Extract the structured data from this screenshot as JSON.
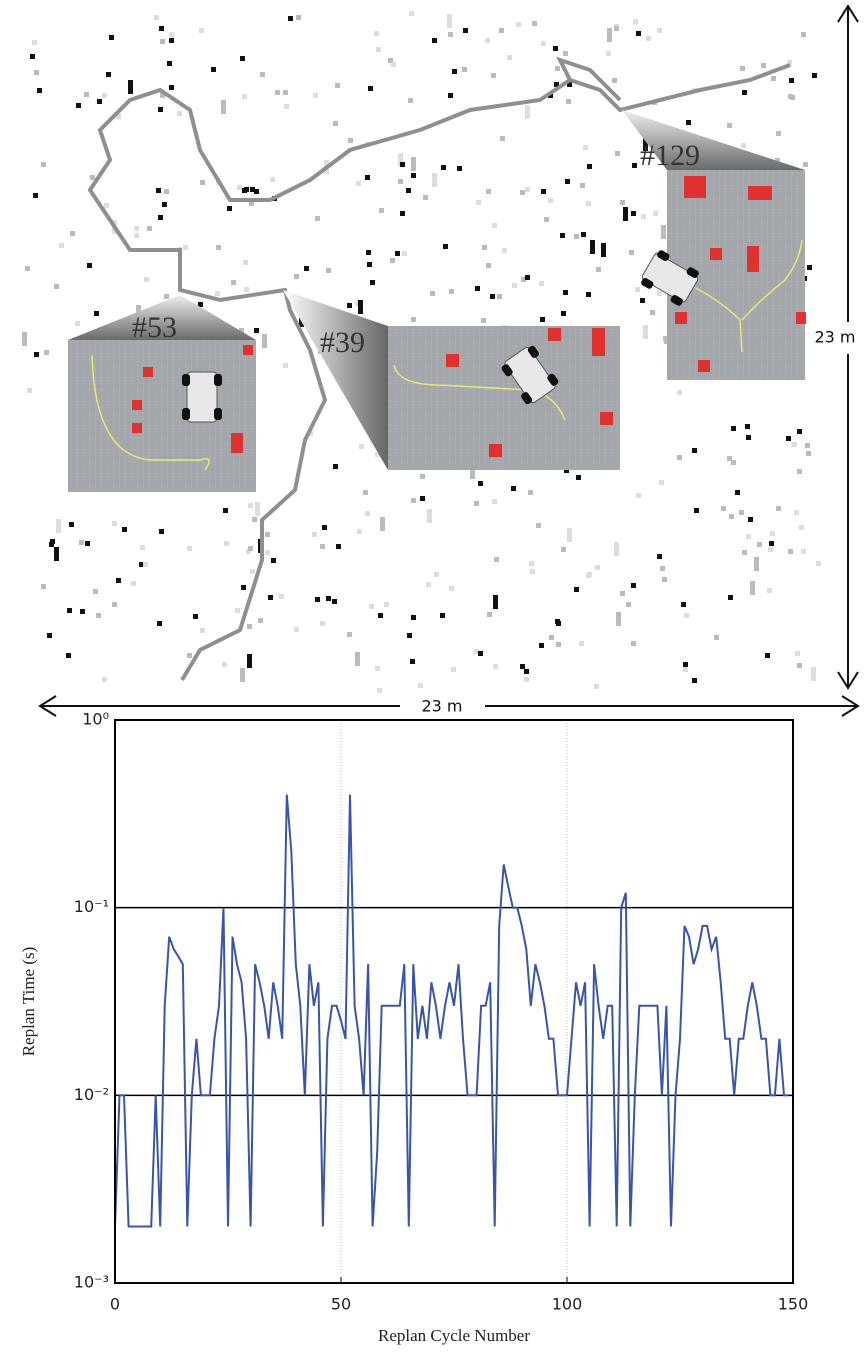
{
  "map": {
    "labels": [
      "#53",
      "#39",
      "#129"
    ],
    "width_label": "23 m",
    "height_label": "23 m"
  },
  "chart_data": {
    "type": "line",
    "xlabel": "Replan Cycle Number",
    "ylabel": "Replan Time (s)",
    "color": "#3a55a8",
    "log_y": true,
    "grid": true,
    "xlim": [
      0,
      150
    ],
    "xticks": [
      0,
      50,
      100,
      150
    ],
    "ylim": [
      0.001,
      1
    ],
    "yticks": [
      {
        "value": 0.001,
        "label": "10⁻³"
      },
      {
        "value": 0.01,
        "label": "10⁻²"
      },
      {
        "value": 0.1,
        "label": "10⁻¹"
      },
      {
        "value": 1,
        "label": "10⁰"
      }
    ],
    "x": [
      0,
      1,
      2,
      3,
      4,
      5,
      6,
      7,
      8,
      9,
      10,
      11,
      12,
      13,
      14,
      15,
      16,
      17,
      18,
      19,
      20,
      21,
      22,
      23,
      24,
      25,
      26,
      27,
      28,
      29,
      30,
      31,
      32,
      33,
      34,
      35,
      36,
      37,
      38,
      39,
      40,
      41,
      42,
      43,
      44,
      45,
      46,
      47,
      48,
      49,
      50,
      51,
      52,
      53,
      54,
      55,
      56,
      57,
      58,
      59,
      60,
      61,
      62,
      63,
      64,
      65,
      66,
      67,
      68,
      69,
      70,
      71,
      72,
      73,
      74,
      75,
      76,
      77,
      78,
      79,
      80,
      81,
      82,
      83,
      84,
      85,
      86,
      87,
      88,
      89,
      90,
      91,
      92,
      93,
      94,
      95,
      96,
      97,
      98,
      99,
      100,
      101,
      102,
      103,
      104,
      105,
      106,
      107,
      108,
      109,
      110,
      111,
      112,
      113,
      114,
      115,
      116,
      117,
      118,
      119,
      120,
      121,
      122,
      123,
      124,
      125,
      126,
      127,
      128,
      129,
      130,
      131,
      132,
      133,
      134,
      135,
      136,
      137,
      138,
      139,
      140,
      141,
      142,
      143,
      144,
      145,
      146,
      147,
      148,
      149
    ],
    "values": [
      0.002,
      0.01,
      0.01,
      0.002,
      0.002,
      0.002,
      0.002,
      0.002,
      0.002,
      0.01,
      0.002,
      0.03,
      0.07,
      0.06,
      0.055,
      0.05,
      0.002,
      0.01,
      0.02,
      0.01,
      0.01,
      0.01,
      0.02,
      0.03,
      0.1,
      0.002,
      0.07,
      0.05,
      0.04,
      0.02,
      0.002,
      0.05,
      0.04,
      0.03,
      0.02,
      0.04,
      0.03,
      0.02,
      0.4,
      0.2,
      0.05,
      0.03,
      0.01,
      0.05,
      0.03,
      0.04,
      0.002,
      0.02,
      0.03,
      0.03,
      0.025,
      0.02,
      0.4,
      0.03,
      0.02,
      0.01,
      0.05,
      0.002,
      0.005,
      0.03,
      0.03,
      0.03,
      0.03,
      0.03,
      0.05,
      0.002,
      0.05,
      0.02,
      0.03,
      0.02,
      0.04,
      0.03,
      0.02,
      0.03,
      0.04,
      0.03,
      0.05,
      0.02,
      0.01,
      0.01,
      0.01,
      0.03,
      0.03,
      0.04,
      0.002,
      0.08,
      0.17,
      0.13,
      0.1,
      0.1,
      0.08,
      0.06,
      0.03,
      0.05,
      0.04,
      0.03,
      0.02,
      0.02,
      0.01,
      0.01,
      0.01,
      0.02,
      0.04,
      0.03,
      0.04,
      0.002,
      0.05,
      0.03,
      0.02,
      0.03,
      0.03,
      0.002,
      0.1,
      0.12,
      0.002,
      0.01,
      0.03,
      0.03,
      0.03,
      0.03,
      0.03,
      0.01,
      0.03,
      0.002,
      0.01,
      0.02,
      0.08,
      0.07,
      0.05,
      0.06,
      0.08,
      0.08,
      0.06,
      0.07,
      0.04,
      0.02,
      0.02,
      0.01,
      0.02,
      0.02,
      0.03,
      0.04,
      0.03,
      0.02,
      0.02,
      0.01,
      0.01,
      0.02,
      0.01,
      0.01
    ]
  }
}
